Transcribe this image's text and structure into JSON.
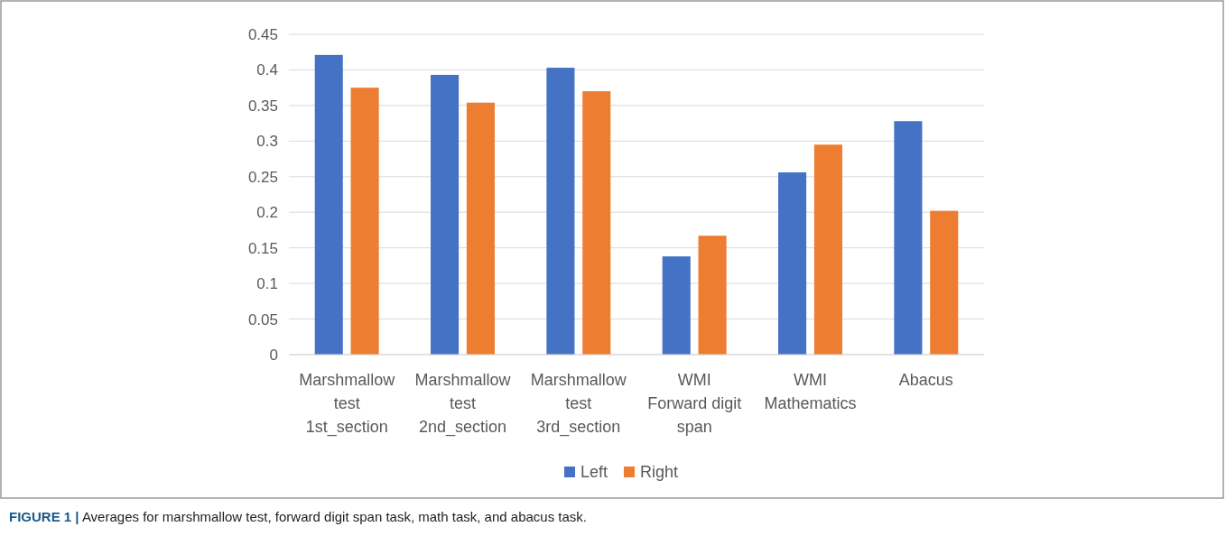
{
  "chart_data": {
    "type": "bar",
    "categories": [
      "Marshmallow\ntest\n1st_section",
      "Marshmallow\ntest\n2nd_section",
      "Marshmallow\ntest\n3rd_section",
      "WMI\nForward digit\nspan",
      "WMI\nMathematics",
      "Abacus"
    ],
    "series": [
      {
        "name": "Left",
        "color": "#4472c4",
        "values": [
          0.421,
          0.393,
          0.403,
          0.138,
          0.256,
          0.328
        ]
      },
      {
        "name": "Right",
        "color": "#ed7d31",
        "values": [
          0.375,
          0.354,
          0.37,
          0.167,
          0.295,
          0.202
        ]
      }
    ],
    "ylim": [
      0,
      0.45
    ],
    "yticks": [
      0,
      0.05,
      0.1,
      0.15,
      0.2,
      0.25,
      0.3,
      0.35,
      0.4,
      0.45
    ],
    "grid": "y",
    "legend": "bottom",
    "annotations": [
      "FIGURE 1 | Averages for marshmallow test, forward digit span task, math task, and abacus task."
    ]
  }
}
